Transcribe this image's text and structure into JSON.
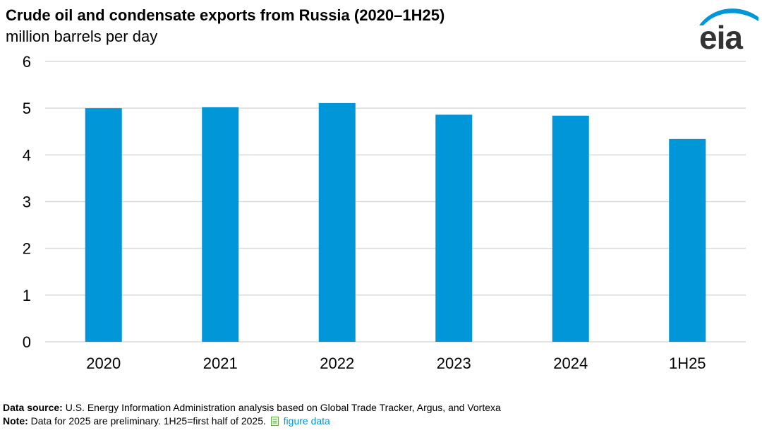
{
  "header": {
    "title": "Crude oil and condensate exports from Russia (2020–1H25)",
    "subtitle": "million barrels per day",
    "logo_text": "eia"
  },
  "colors": {
    "bar": "#0096d7",
    "grid": "#d9d9d9",
    "link": "#0096d7"
  },
  "chart_data": {
    "type": "bar",
    "categories": [
      "2020",
      "2021",
      "2022",
      "2023",
      "2024",
      "1H25"
    ],
    "values": [
      5.0,
      5.02,
      5.11,
      4.86,
      4.84,
      4.34
    ],
    "ylim": [
      0,
      6
    ],
    "yticks": [
      0,
      1,
      2,
      3,
      4,
      5,
      6
    ],
    "grid": true,
    "legend": "none"
  },
  "footer": {
    "source_label": "Data source:",
    "source_text": "U.S. Energy Information Administration analysis based on Global Trade Tracker, Argus, and Vortexa",
    "note_label": "Note:",
    "note_text": "Data for 2025 are preliminary. 1H25=first half of 2025.",
    "link_label": "figure data",
    "link_icon": "document-icon"
  }
}
